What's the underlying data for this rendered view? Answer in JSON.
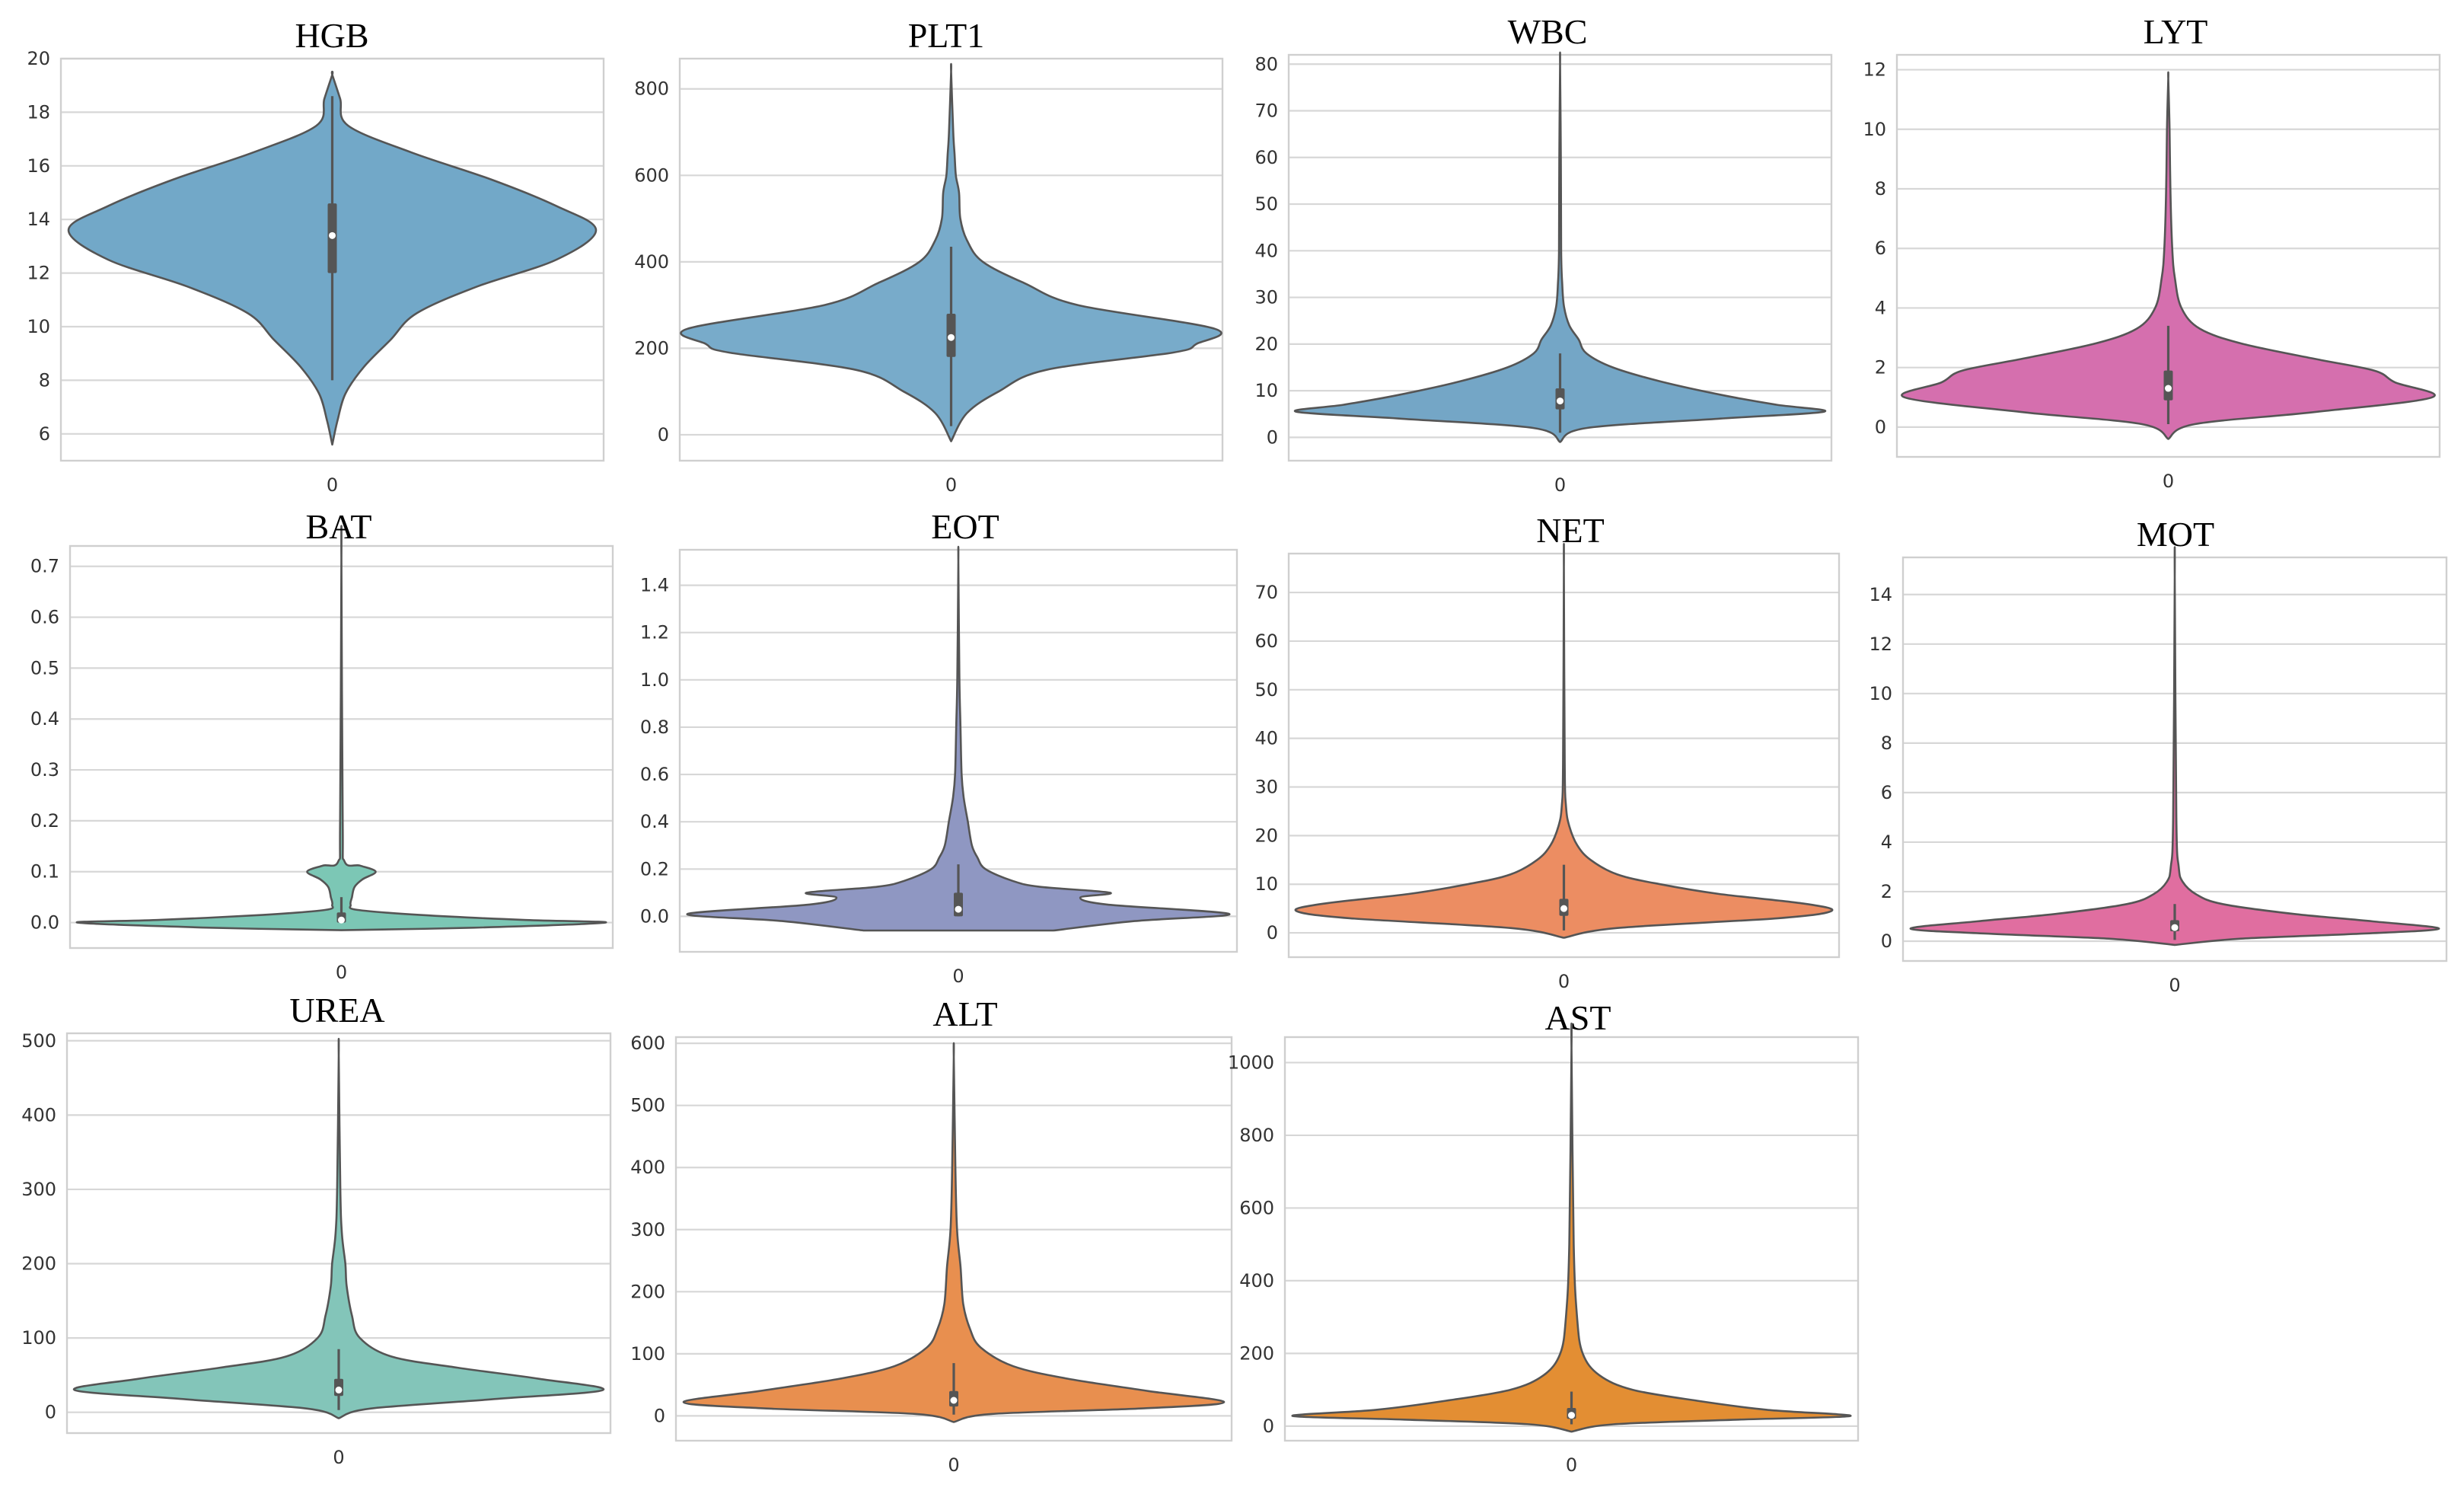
{
  "chart_data": [
    {
      "type": "violin",
      "title": "HGB",
      "categories": [
        "0"
      ],
      "color": "#72a8c8",
      "ylim": [
        5,
        20
      ],
      "yticks": [
        6,
        8,
        10,
        12,
        14,
        16,
        18,
        20
      ],
      "min": 5.6,
      "max": 19.4,
      "q1": 12.0,
      "median": 13.4,
      "q3": 14.6,
      "whisker_low": 8.0,
      "whisker_high": 18.6,
      "density": [
        [
          5.6,
          0.0
        ],
        [
          6.5,
          0.02
        ],
        [
          7.5,
          0.05
        ],
        [
          8.5,
          0.12
        ],
        [
          9.5,
          0.22
        ],
        [
          10.5,
          0.32
        ],
        [
          11.5,
          0.55
        ],
        [
          12.5,
          0.85
        ],
        [
          13.6,
          1.0
        ],
        [
          14.5,
          0.85
        ],
        [
          15.5,
          0.6
        ],
        [
          16.5,
          0.3
        ],
        [
          17.5,
          0.06
        ],
        [
          18.5,
          0.03
        ],
        [
          19.4,
          0.0
        ]
      ]
    },
    {
      "type": "violin",
      "title": "PLT1",
      "categories": [
        "0"
      ],
      "color": "#78abca",
      "ylim": [
        -60,
        870
      ],
      "yticks": [
        0,
        200,
        400,
        600,
        800
      ],
      "min": -15,
      "max": 840,
      "q1": 180,
      "median": 225,
      "q3": 280,
      "whisker_low": 20,
      "whisker_high": 435,
      "density": [
        [
          -15,
          0.0
        ],
        [
          50,
          0.06
        ],
        [
          100,
          0.18
        ],
        [
          150,
          0.36
        ],
        [
          190,
          0.84
        ],
        [
          210,
          0.93
        ],
        [
          245,
          1.0
        ],
        [
          300,
          0.48
        ],
        [
          350,
          0.28
        ],
        [
          400,
          0.12
        ],
        [
          450,
          0.06
        ],
        [
          500,
          0.035
        ],
        [
          560,
          0.03
        ],
        [
          600,
          0.018
        ],
        [
          650,
          0.013
        ],
        [
          700,
          0.008
        ],
        [
          840,
          0.0
        ]
      ]
    },
    {
      "type": "violin",
      "title": "WBC",
      "categories": [
        "0"
      ],
      "color": "#74a6c6",
      "ylim": [
        -5,
        82
      ],
      "yticks": [
        0,
        10,
        20,
        30,
        40,
        50,
        60,
        70,
        80
      ],
      "min": -1,
      "max": 80,
      "q1": 6.0,
      "median": 7.8,
      "q3": 10.5,
      "whisker_low": 1,
      "whisker_high": 18,
      "density": [
        [
          -1,
          0.0
        ],
        [
          2,
          0.1
        ],
        [
          4,
          0.6
        ],
        [
          5.5,
          1.0
        ],
        [
          7,
          0.82
        ],
        [
          9,
          0.62
        ],
        [
          12,
          0.38
        ],
        [
          15,
          0.2
        ],
        [
          18,
          0.1
        ],
        [
          21,
          0.07
        ],
        [
          24,
          0.035
        ],
        [
          28,
          0.015
        ],
        [
          33,
          0.008
        ],
        [
          40,
          0.004
        ],
        [
          60,
          0.003
        ],
        [
          80,
          0.0
        ]
      ]
    },
    {
      "type": "violin",
      "title": "LYT",
      "categories": [
        "0"
      ],
      "color": "#d56fae",
      "ylim": [
        -1,
        12.5
      ],
      "yticks": [
        0,
        2,
        4,
        6,
        8,
        10,
        12
      ],
      "min": -0.4,
      "max": 11.7,
      "q1": 0.9,
      "median": 1.3,
      "q3": 1.9,
      "whisker_low": 0.1,
      "whisker_high": 3.4,
      "density": [
        [
          -0.4,
          0.0
        ],
        [
          0.1,
          0.1
        ],
        [
          0.5,
          0.55
        ],
        [
          1.0,
          1.0
        ],
        [
          1.5,
          0.86
        ],
        [
          1.9,
          0.78
        ],
        [
          2.3,
          0.55
        ],
        [
          2.8,
          0.28
        ],
        [
          3.3,
          0.12
        ],
        [
          4.0,
          0.05
        ],
        [
          5.0,
          0.025
        ],
        [
          6.0,
          0.015
        ],
        [
          8.0,
          0.008
        ],
        [
          10.0,
          0.005
        ],
        [
          11.7,
          0.0
        ]
      ]
    },
    {
      "type": "violin",
      "title": "BAT",
      "categories": [
        "0"
      ],
      "color": "#7cc7b5",
      "ylim": [
        -0.05,
        0.74
      ],
      "yticks": [
        0.0,
        0.1,
        0.2,
        0.3,
        0.4,
        0.5,
        0.6,
        0.7
      ],
      "min": -0.015,
      "max": 0.715,
      "q1": 0.0,
      "median": 0.005,
      "q3": 0.02,
      "whisker_low": 0.0,
      "whisker_high": 0.05,
      "density": [
        [
          -0.015,
          0.0
        ],
        [
          -0.01,
          0.5
        ],
        [
          0.0,
          1.0
        ],
        [
          0.005,
          0.7
        ],
        [
          0.015,
          0.3
        ],
        [
          0.025,
          0.06
        ],
        [
          0.035,
          0.035
        ],
        [
          0.05,
          0.04
        ],
        [
          0.07,
          0.05
        ],
        [
          0.085,
          0.08
        ],
        [
          0.1,
          0.13
        ],
        [
          0.112,
          0.07
        ],
        [
          0.12,
          0.012
        ],
        [
          0.2,
          0.005
        ],
        [
          0.715,
          0.0
        ]
      ]
    },
    {
      "type": "violin",
      "title": "EOT",
      "categories": [
        "0"
      ],
      "color": "#8f97c2",
      "ylim": [
        -0.15,
        1.55
      ],
      "yticks": [
        0.0,
        0.2,
        0.4,
        0.6,
        0.8,
        1.0,
        1.2,
        1.4
      ],
      "min": -0.06,
      "max": 1.5,
      "q1": 0.0,
      "median": 0.03,
      "q3": 0.1,
      "whisker_low": 0.0,
      "whisker_high": 0.22,
      "density": [
        [
          -0.06,
          0.35
        ],
        [
          -0.02,
          0.65
        ],
        [
          0.01,
          1.0
        ],
        [
          0.05,
          0.55
        ],
        [
          0.08,
          0.45
        ],
        [
          0.1,
          0.56
        ],
        [
          0.125,
          0.3
        ],
        [
          0.15,
          0.2
        ],
        [
          0.2,
          0.1
        ],
        [
          0.25,
          0.07
        ],
        [
          0.3,
          0.05
        ],
        [
          0.4,
          0.035
        ],
        [
          0.5,
          0.02
        ],
        [
          0.6,
          0.012
        ],
        [
          0.8,
          0.008
        ],
        [
          1.0,
          0.004
        ],
        [
          1.5,
          0.0
        ]
      ]
    },
    {
      "type": "violin",
      "title": "NET",
      "categories": [
        "0"
      ],
      "color": "#ec8d62",
      "ylim": [
        -5,
        78
      ],
      "yticks": [
        0,
        10,
        20,
        30,
        40,
        50,
        60,
        70
      ],
      "min": -1,
      "max": 75,
      "q1": 3.5,
      "median": 5.0,
      "q3": 7.0,
      "whisker_low": 0.5,
      "whisker_high": 14,
      "density": [
        [
          -1,
          0.0
        ],
        [
          1,
          0.2
        ],
        [
          3,
          0.8
        ],
        [
          4.5,
          1.0
        ],
        [
          6,
          0.9
        ],
        [
          8,
          0.58
        ],
        [
          10,
          0.36
        ],
        [
          12,
          0.2
        ],
        [
          15,
          0.1
        ],
        [
          18,
          0.05
        ],
        [
          22,
          0.02
        ],
        [
          26,
          0.008
        ],
        [
          35,
          0.003
        ],
        [
          75,
          0.0
        ]
      ]
    },
    {
      "type": "violin",
      "title": "MOT",
      "categories": [
        "0"
      ],
      "color": "#e06ea0",
      "ylim": [
        -0.8,
        15.5
      ],
      "yticks": [
        0,
        2,
        4,
        6,
        8,
        10,
        12,
        14
      ],
      "min": -0.15,
      "max": 14.7,
      "q1": 0.4,
      "median": 0.55,
      "q3": 0.85,
      "whisker_low": 0.05,
      "whisker_high": 1.5,
      "density": [
        [
          -0.15,
          0.0
        ],
        [
          0.1,
          0.25
        ],
        [
          0.3,
          0.7
        ],
        [
          0.5,
          1.0
        ],
        [
          0.8,
          0.75
        ],
        [
          1.1,
          0.45
        ],
        [
          1.5,
          0.18
        ],
        [
          1.9,
          0.08
        ],
        [
          2.4,
          0.03
        ],
        [
          3.0,
          0.015
        ],
        [
          5.0,
          0.006
        ],
        [
          14.7,
          0.0
        ]
      ]
    },
    {
      "type": "violin",
      "title": "UREA",
      "categories": [
        "0"
      ],
      "color": "#83c5b9",
      "ylim": [
        -28,
        510
      ],
      "yticks": [
        0,
        100,
        200,
        300,
        400,
        500
      ],
      "min": -8,
      "max": 480,
      "q1": 22,
      "median": 30,
      "q3": 45,
      "whisker_low": 3,
      "whisker_high": 85,
      "density": [
        [
          -8,
          0.0
        ],
        [
          5,
          0.12
        ],
        [
          18,
          0.6
        ],
        [
          30,
          1.0
        ],
        [
          45,
          0.76
        ],
        [
          60,
          0.45
        ],
        [
          75,
          0.2
        ],
        [
          100,
          0.08
        ],
        [
          130,
          0.05
        ],
        [
          170,
          0.03
        ],
        [
          200,
          0.025
        ],
        [
          240,
          0.012
        ],
        [
          300,
          0.006
        ],
        [
          480,
          0.0
        ]
      ]
    },
    {
      "type": "violin",
      "title": "ALT",
      "categories": [
        "0"
      ],
      "color": "#e88f4f",
      "ylim": [
        -40,
        610
      ],
      "yticks": [
        0,
        100,
        200,
        300,
        400,
        500,
        600
      ],
      "min": -10,
      "max": 578,
      "q1": 15,
      "median": 25,
      "q3": 40,
      "whisker_low": 2,
      "whisker_high": 85,
      "density": [
        [
          -10,
          0.0
        ],
        [
          3,
          0.14
        ],
        [
          12,
          0.7
        ],
        [
          22,
          1.0
        ],
        [
          40,
          0.72
        ],
        [
          60,
          0.42
        ],
        [
          80,
          0.22
        ],
        [
          110,
          0.1
        ],
        [
          140,
          0.06
        ],
        [
          180,
          0.035
        ],
        [
          240,
          0.025
        ],
        [
          300,
          0.012
        ],
        [
          400,
          0.006
        ],
        [
          578,
          0.0
        ]
      ]
    },
    {
      "type": "violin",
      "title": "AST",
      "categories": [
        "0"
      ],
      "color": "#e38e33",
      "ylim": [
        -40,
        1070
      ],
      "yticks": [
        0,
        200,
        400,
        600,
        800,
        1000
      ],
      "min": -15,
      "max": 1040,
      "q1": 20,
      "median": 30,
      "q3": 50,
      "whisker_low": 5,
      "whisker_high": 95,
      "density": [
        [
          -15,
          0.0
        ],
        [
          5,
          0.15
        ],
        [
          18,
          0.6
        ],
        [
          28,
          1.0
        ],
        [
          45,
          0.7
        ],
        [
          70,
          0.45
        ],
        [
          100,
          0.22
        ],
        [
          140,
          0.1
        ],
        [
          200,
          0.04
        ],
        [
          300,
          0.02
        ],
        [
          500,
          0.008
        ],
        [
          1040,
          0.0
        ]
      ]
    }
  ]
}
